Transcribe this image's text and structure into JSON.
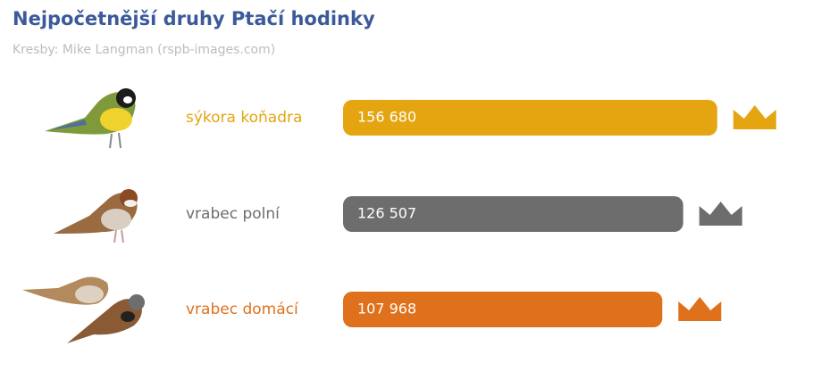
{
  "chart_data": {
    "type": "bar",
    "orientation": "horizontal",
    "title": "Nejpočetnější druhy Ptačí hodinky",
    "subtitle": "Kresby: Mike Langman (rspb-images.com)",
    "categories": [
      "sýkora koňadra",
      "vrabec polní",
      "vrabec domácí"
    ],
    "values": [
      156680,
      126507,
      107968
    ],
    "value_labels": [
      "156 680",
      "126 507",
      "107 968"
    ],
    "colors": [
      "#e4a511",
      "#6d6d6d",
      "#e0711c"
    ],
    "xlim": [
      -175000,
      160000
    ]
  }
}
